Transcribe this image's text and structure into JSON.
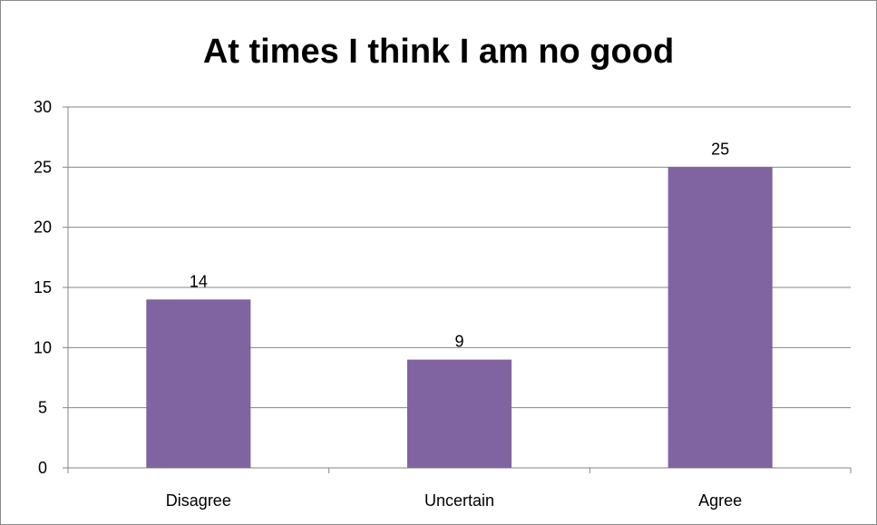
{
  "chart_data": {
    "type": "bar",
    "title": "At times I think I am no good",
    "categories": [
      "Disagree",
      "Uncertain",
      "Agree"
    ],
    "values": [
      14,
      9,
      25
    ],
    "data_labels": [
      "14",
      "9",
      "25"
    ],
    "xlabel": "",
    "ylabel": "",
    "ylim": [
      0,
      30
    ],
    "yticks": [
      0,
      5,
      10,
      15,
      20,
      25,
      30
    ],
    "ytick_labels": [
      "0",
      "5",
      "10",
      "15",
      "20",
      "25",
      "30"
    ],
    "grid": true,
    "legend": "none",
    "bar_color": "#8064a2",
    "grid_color": "#868686"
  }
}
